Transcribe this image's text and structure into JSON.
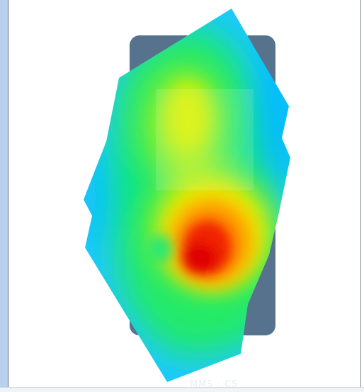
{
  "view": {
    "type": "eye-tracking-heatmap-overlay",
    "subject": "phone-screen-mockup",
    "colors": {
      "panel": "#b8cfee",
      "device_body": "#4f6f8c",
      "heat_cool": "#00c8ff",
      "heat_low": "#00e87a",
      "heat_mid": "#d8f200",
      "heat_high": "#ff8a00",
      "heat_peak": "#e00000"
    },
    "heatmap": {
      "peak_level": 1.0,
      "secondary_peak_level": 0.7
    }
  },
  "watermark": {
    "text": "MMS · CS"
  }
}
